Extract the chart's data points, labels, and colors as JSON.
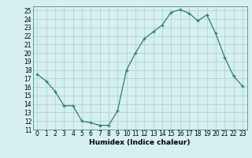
{
  "x": [
    0,
    1,
    2,
    3,
    4,
    5,
    6,
    7,
    8,
    9,
    10,
    11,
    12,
    13,
    14,
    15,
    16,
    17,
    18,
    19,
    20,
    21,
    22,
    23
  ],
  "y": [
    17.5,
    16.7,
    15.5,
    13.8,
    13.8,
    12.0,
    11.8,
    11.5,
    11.5,
    13.2,
    18.0,
    20.0,
    21.7,
    22.5,
    23.3,
    24.8,
    25.1,
    24.7,
    23.8,
    24.5,
    22.3,
    19.5,
    17.3,
    16.1
  ],
  "xlabel": "Humidex (Indice chaleur)",
  "xlim": [
    -0.5,
    23.5
  ],
  "ylim": [
    11,
    25.5
  ],
  "yticks": [
    11,
    12,
    13,
    14,
    15,
    16,
    17,
    18,
    19,
    20,
    21,
    22,
    23,
    24,
    25
  ],
  "xticks": [
    0,
    1,
    2,
    3,
    4,
    5,
    6,
    7,
    8,
    9,
    10,
    11,
    12,
    13,
    14,
    15,
    16,
    17,
    18,
    19,
    20,
    21,
    22,
    23
  ],
  "line_color": "#2e7d6e",
  "marker": "+",
  "bg_color": "#d6f0f0",
  "grid_color": "#b0c8c8",
  "label_fontsize": 6.5,
  "tick_fontsize": 5.5
}
